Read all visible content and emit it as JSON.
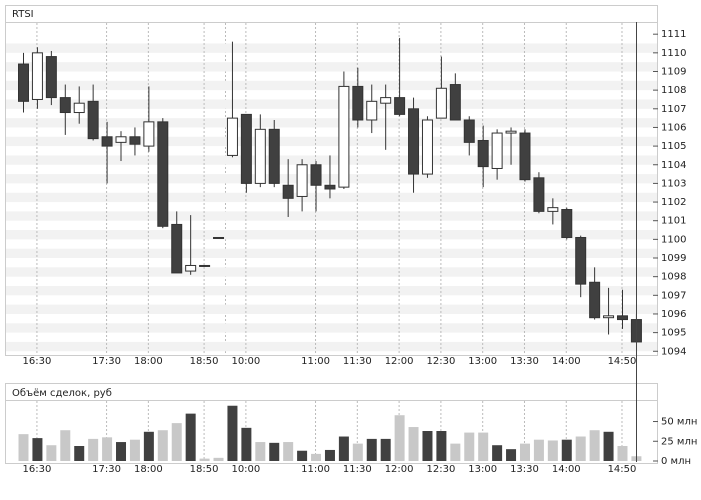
{
  "chart_data": [
    {
      "type": "candlestick",
      "title": "RTSI",
      "categories": [
        null,
        "16:30",
        null,
        null,
        null,
        null,
        "17:30",
        null,
        null,
        "18:00",
        null,
        null,
        null,
        "18:50",
        null,
        null,
        "10:00",
        null,
        null,
        null,
        null,
        "11:00",
        null,
        null,
        "11:30",
        null,
        null,
        "12:00",
        null,
        null,
        "12:30",
        null,
        null,
        "13:00",
        null,
        null,
        "13:30",
        null,
        null,
        "14:00",
        null,
        null,
        null,
        "14:50",
        null
      ],
      "open": [
        1109.4,
        1107.5,
        1109.8,
        1107.6,
        1106.8,
        1107.4,
        1105.5,
        1105.2,
        1105.5,
        1105.0,
        1106.3,
        1100.8,
        1098.3,
        1098.6,
        1100.1,
        1104.5,
        1106.7,
        1103.0,
        1105.9,
        1102.9,
        1102.3,
        1104.0,
        1102.9,
        1102.8,
        1108.2,
        1106.4,
        1107.3,
        1107.6,
        1107.0,
        1103.5,
        1106.5,
        1108.3,
        1106.4,
        1105.3,
        1103.8,
        1105.7,
        1105.7,
        1103.3,
        1101.5,
        1101.6,
        1100.1,
        1097.7,
        1095.8,
        1095.9,
        1095.7
      ],
      "high": [
        1110.0,
        1110.3,
        1110.1,
        1108.3,
        1108.2,
        1108.3,
        1106.3,
        1105.8,
        1106.0,
        1108.2,
        1106.5,
        1101.5,
        1101.3,
        1098.6,
        1100.1,
        1110.6,
        1106.7,
        1106.7,
        1106.4,
        1104.3,
        1104.3,
        1104.2,
        1104.5,
        1109.0,
        1109.2,
        1108.3,
        1108.3,
        1110.8,
        1107.6,
        1106.6,
        1109.8,
        1108.9,
        1106.6,
        1106.1,
        1105.9,
        1106.0,
        1105.9,
        1103.6,
        1102.2,
        1101.7,
        1100.2,
        1098.5,
        1097.4,
        1097.3,
        1096.0
      ],
      "low": [
        1106.8,
        1107.0,
        1107.2,
        1105.6,
        1106.2,
        1105.3,
        1103.0,
        1104.2,
        1104.5,
        1104.7,
        1100.6,
        1098.2,
        1098.1,
        1098.6,
        1100.1,
        1104.4,
        1102.5,
        1102.8,
        1102.8,
        1101.2,
        1101.5,
        1101.5,
        1102.2,
        1102.7,
        1106.0,
        1105.7,
        1104.8,
        1106.6,
        1102.5,
        1103.3,
        1106.5,
        1106.4,
        1104.5,
        1102.8,
        1103.2,
        1104.0,
        1103.1,
        1101.4,
        1100.8,
        1100.0,
        1096.9,
        1095.7,
        1094.9,
        1095.2,
        1094.5
      ],
      "close": [
        1107.4,
        1110.0,
        1107.6,
        1106.8,
        1107.3,
        1105.4,
        1105.0,
        1105.5,
        1105.1,
        1106.3,
        1100.7,
        1098.2,
        1098.6,
        1098.6,
        1100.1,
        1106.5,
        1103.0,
        1105.9,
        1103.0,
        1102.2,
        1104.0,
        1102.9,
        1102.7,
        1108.2,
        1106.4,
        1107.4,
        1107.6,
        1106.7,
        1103.5,
        1106.4,
        1108.1,
        1106.4,
        1105.2,
        1103.9,
        1105.7,
        1105.8,
        1103.2,
        1101.5,
        1101.7,
        1100.1,
        1097.6,
        1095.8,
        1095.9,
        1095.7,
        1094.5
      ],
      "up_color": "#ffffff",
      "down_color": "#404040",
      "ylim": [
        1093.8,
        1111.6
      ],
      "yticks": [
        1094,
        1095,
        1096,
        1097,
        1098,
        1099,
        1100,
        1101,
        1102,
        1103,
        1104,
        1105,
        1106,
        1107,
        1108,
        1109,
        1110,
        1111
      ]
    },
    {
      "type": "bar",
      "title": "Объём сделок, руб",
      "categories": [
        null,
        "16:30",
        null,
        null,
        null,
        null,
        "17:30",
        null,
        null,
        "18:00",
        null,
        null,
        null,
        "18:50",
        null,
        null,
        "10:00",
        null,
        null,
        null,
        null,
        "11:00",
        null,
        null,
        "11:30",
        null,
        null,
        "12:00",
        null,
        null,
        "12:30",
        null,
        null,
        "13:00",
        null,
        null,
        "13:30",
        null,
        null,
        "14:00",
        null,
        null,
        null,
        "14:50",
        null
      ],
      "values": [
        34,
        29,
        20,
        39,
        19,
        28,
        30,
        24,
        27,
        37,
        39,
        48,
        60,
        3,
        4,
        70,
        42,
        24,
        23,
        24,
        13,
        9,
        14,
        31,
        22,
        28,
        28,
        58,
        43,
        38,
        38,
        22,
        36,
        36,
        20,
        15,
        22,
        27,
        26,
        27,
        31,
        39,
        37,
        19,
        6
      ],
      "colors": [
        "#c8c8c8",
        "#404040",
        "#c8c8c8",
        "#c8c8c8",
        "#404040",
        "#c8c8c8",
        "#c8c8c8",
        "#404040",
        "#c8c8c8",
        "#404040",
        "#c8c8c8",
        "#c8c8c8",
        "#404040",
        "#c8c8c8",
        "#c8c8c8",
        "#404040",
        "#404040",
        "#c8c8c8",
        "#404040",
        "#c8c8c8",
        "#404040",
        "#c8c8c8",
        "#404040",
        "#404040",
        "#c8c8c8",
        "#404040",
        "#404040",
        "#c8c8c8",
        "#c8c8c8",
        "#404040",
        "#404040",
        "#c8c8c8",
        "#c8c8c8",
        "#c8c8c8",
        "#404040",
        "#404040",
        "#c8c8c8",
        "#c8c8c8",
        "#c8c8c8",
        "#404040",
        "#c8c8c8",
        "#c8c8c8",
        "#404040",
        "#c8c8c8",
        "#c8c8c8"
      ],
      "ylim": [
        0,
        76
      ],
      "yticks": [
        {
          "value": 0,
          "label": "0 млн"
        },
        {
          "value": 25,
          "label": "25 млн"
        },
        {
          "value": 50,
          "label": "50 млн"
        }
      ]
    }
  ]
}
